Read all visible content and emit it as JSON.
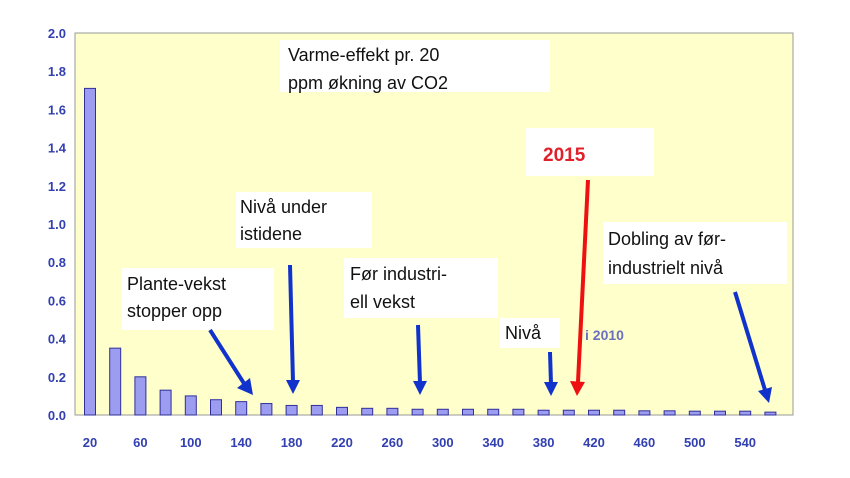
{
  "colors": {
    "plot_background": "#ffffcc",
    "bar_fill": "#9c9cf0",
    "bar_stroke": "#30309a",
    "arrow_blue": "#1133cc",
    "arrow_red": "#ee1111",
    "tick_text": "#3340b0"
  },
  "chart_data": {
    "type": "bar",
    "title": "Varme-effekt pr. 20 ppm økning av CO2",
    "title_lines": [
      "Varme-effekt pr. 20",
      "ppm økning av CO2"
    ],
    "xlabel": "",
    "ylabel": "",
    "ylim": [
      0,
      2.0
    ],
    "yticks": [
      "0.0",
      "0.2",
      "0.4",
      "0.6",
      "0.8",
      "1.0",
      "1.2",
      "1.4",
      "1.6",
      "1.8",
      "2.0"
    ],
    "xticks": [
      "20",
      "60",
      "100",
      "140",
      "180",
      "220",
      "260",
      "300",
      "340",
      "380",
      "420",
      "460",
      "500",
      "540"
    ],
    "categories": [
      20,
      40,
      60,
      80,
      100,
      120,
      140,
      160,
      180,
      200,
      220,
      240,
      260,
      280,
      300,
      320,
      340,
      360,
      380,
      400,
      420,
      440,
      460,
      480,
      500,
      520,
      540,
      560
    ],
    "values": [
      1.71,
      0.35,
      0.2,
      0.13,
      0.1,
      0.08,
      0.07,
      0.06,
      0.05,
      0.05,
      0.04,
      0.035,
      0.035,
      0.03,
      0.03,
      0.03,
      0.03,
      0.03,
      0.025,
      0.025,
      0.025,
      0.025,
      0.022,
      0.022,
      0.02,
      0.02,
      0.02,
      0.015
    ],
    "grid": false,
    "annotations": [
      {
        "lines": [
          "Plante-vekst",
          "stopper opp"
        ],
        "target_x": 150,
        "style": "blue"
      },
      {
        "lines": [
          "Nivå under",
          "istidene"
        ],
        "target_x": 180,
        "style": "blue"
      },
      {
        "lines": [
          "Før industri-",
          "ell vekst"
        ],
        "target_x": 280,
        "style": "blue"
      },
      {
        "lines": [
          "Nivå"
        ],
        "target_x": 385,
        "style": "blue"
      },
      {
        "lines": [
          "i 2010"
        ],
        "style": "faded"
      },
      {
        "lines": [
          "2015"
        ],
        "target_x": 400,
        "style": "red"
      },
      {
        "lines": [
          "Dobling av før-",
          "industrielt nivå"
        ],
        "target_x": 560,
        "style": "blue"
      }
    ]
  }
}
